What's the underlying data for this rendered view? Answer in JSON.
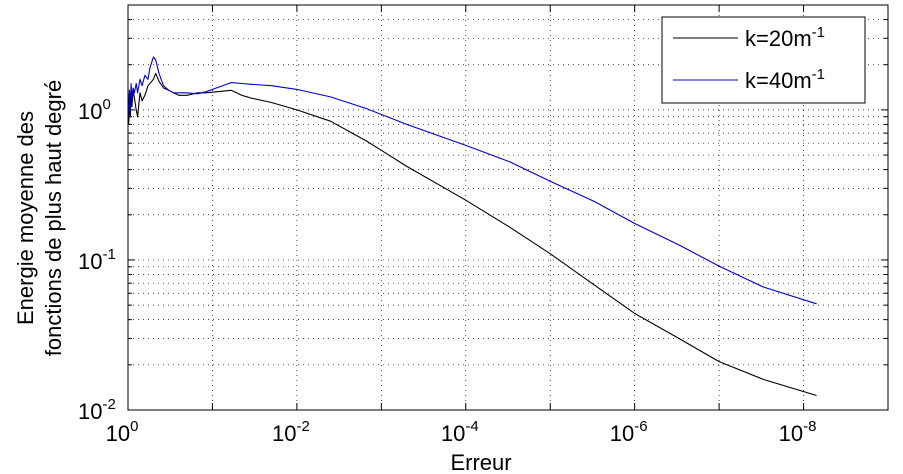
{
  "chart_data": {
    "type": "line",
    "xlabel": "Erreur",
    "ylabel_lines": [
      "Energie moyenne  des",
      "fonctions de plus haut degré"
    ],
    "x_scale": "log",
    "y_scale": "log",
    "x_reversed": true,
    "xlim": [
      1,
      1e-09
    ],
    "ylim": [
      0.01,
      5
    ],
    "grid": true,
    "legend_position": "top-right",
    "x_ticks": [
      {
        "value": 1,
        "base": "10",
        "exp": "0"
      },
      {
        "value": 0.01,
        "base": "10",
        "exp": "-2"
      },
      {
        "value": 0.0001,
        "base": "10",
        "exp": "-4"
      },
      {
        "value": 1e-06,
        "base": "10",
        "exp": "-6"
      },
      {
        "value": 1e-08,
        "base": "10",
        "exp": "-8"
      }
    ],
    "y_ticks": [
      {
        "value": 1,
        "base": "10",
        "exp": "0"
      },
      {
        "value": 0.1,
        "base": "10",
        "exp": "-1"
      },
      {
        "value": 0.01,
        "base": "10",
        "exp": "-2"
      }
    ],
    "series": [
      {
        "label_main": "k=20m",
        "label_sup": "-1",
        "color": "#000000",
        "x": [
          1.0,
          0.98,
          0.96,
          0.94,
          0.92,
          0.9,
          0.87,
          0.84,
          0.8,
          0.77,
          0.72,
          0.68,
          0.63,
          0.58,
          0.55,
          0.5,
          0.47,
          0.43,
          0.38,
          0.33,
          0.29,
          0.25,
          0.2,
          0.15,
          0.12,
          0.09,
          0.06,
          0.045,
          0.035,
          0.02,
          0.01,
          0.004,
          0.0015,
          0.0005,
          0.0001,
          3e-05,
          1e-05,
          3e-06,
          1e-06,
          3e-07,
          1e-07,
          3e-08,
          7e-09
        ],
        "y": [
          1.4,
          0.8,
          1.1,
          0.9,
          1.3,
          1.05,
          1.35,
          1.2,
          1.0,
          0.9,
          1.3,
          1.15,
          1.25,
          1.45,
          1.5,
          1.6,
          1.75,
          1.55,
          1.4,
          1.35,
          1.3,
          1.25,
          1.25,
          1.3,
          1.3,
          1.32,
          1.35,
          1.25,
          1.2,
          1.12,
          1.0,
          0.84,
          0.62,
          0.42,
          0.25,
          0.165,
          0.11,
          0.068,
          0.044,
          0.03,
          0.021,
          0.016,
          0.0125
        ]
      },
      {
        "label_main": "k=40m",
        "label_sup": "-1",
        "color": "#0000cc",
        "x": [
          1.0,
          0.98,
          0.96,
          0.94,
          0.92,
          0.9,
          0.87,
          0.84,
          0.8,
          0.77,
          0.72,
          0.68,
          0.63,
          0.58,
          0.55,
          0.5,
          0.47,
          0.43,
          0.38,
          0.33,
          0.29,
          0.25,
          0.2,
          0.15,
          0.12,
          0.09,
          0.06,
          0.045,
          0.035,
          0.02,
          0.01,
          0.004,
          0.0015,
          0.0005,
          0.0001,
          3e-05,
          1e-05,
          3e-06,
          1e-06,
          3e-07,
          1e-07,
          3e-08,
          7e-09
        ],
        "y": [
          1.3,
          0.9,
          1.35,
          1.0,
          1.5,
          1.2,
          1.4,
          1.3,
          1.5,
          1.3,
          1.6,
          1.45,
          1.7,
          1.6,
          1.9,
          2.25,
          2.15,
          1.75,
          1.45,
          1.35,
          1.3,
          1.3,
          1.3,
          1.28,
          1.32,
          1.4,
          1.52,
          1.5,
          1.48,
          1.45,
          1.37,
          1.22,
          1.02,
          0.8,
          0.58,
          0.45,
          0.335,
          0.245,
          0.175,
          0.126,
          0.091,
          0.066,
          0.051
        ]
      }
    ]
  }
}
